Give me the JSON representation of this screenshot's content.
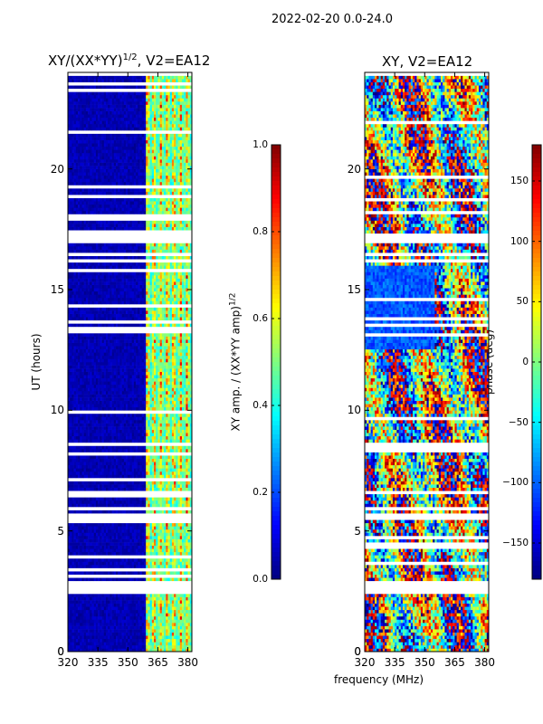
{
  "figure": {
    "suptitle": "2022-02-20 0.0-24.0",
    "common_xlabel": "frequency (MHz)"
  },
  "colors": {
    "jet_stops": [
      "#00007f",
      "#0000ff",
      "#007fff",
      "#00ffff",
      "#7fff7f",
      "#ffff00",
      "#ff7f00",
      "#ff0000",
      "#7f0000"
    ],
    "gap": "#ffffff",
    "frame": "#000000"
  },
  "chart_data": [
    {
      "type": "heatmap",
      "panel": "left",
      "title": "XY/(XX*YY)",
      "title_exponent": "1/2",
      "title_suffix": ", V2=EA12",
      "xlabel": "",
      "ylabel": "UT (hours)",
      "xlim": [
        320,
        382
      ],
      "ylim": [
        0,
        24
      ],
      "xticks": [
        320,
        335,
        350,
        365,
        380
      ],
      "yticks": [
        0,
        5,
        10,
        15,
        20
      ],
      "strong_band_mhz": [
        359,
        382
      ],
      "gaps_hours": [
        [
          2.4,
          2.9
        ],
        [
          5.5,
          5.7
        ],
        [
          8.5,
          8.7
        ],
        [
          16.1,
          16.3
        ],
        [
          17.0,
          17.3
        ],
        [
          23.9,
          24.0
        ]
      ],
      "colorbar": {
        "label": "XY amp. / (XX*YY amp)",
        "label_exponent": "1/2",
        "vmin": 0.0,
        "vmax": 1.0,
        "ticks": [
          "0.0",
          "0.2",
          "0.4",
          "0.6",
          "0.8",
          "1.0"
        ]
      }
    },
    {
      "type": "heatmap",
      "panel": "right",
      "title": "XY, V2=EA12",
      "xlabel": "",
      "ylabel": "",
      "xlim": [
        320,
        382
      ],
      "ylim": [
        0,
        24
      ],
      "xticks": [
        320,
        335,
        350,
        365,
        380
      ],
      "yticks": [
        0,
        5,
        10,
        15,
        20
      ],
      "gaps_hours": [
        [
          2.4,
          2.9
        ],
        [
          5.5,
          5.7
        ],
        [
          8.5,
          8.7
        ],
        [
          16.1,
          16.3
        ],
        [
          17.0,
          17.3
        ],
        [
          23.9,
          24.0
        ]
      ],
      "colorbar": {
        "label": "phase (deg)",
        "vmin": -180,
        "vmax": 180,
        "ticks": [
          "150",
          "100",
          "50",
          "0",
          "−50",
          "−100",
          "−150"
        ],
        "tick_values": [
          150,
          100,
          50,
          0,
          -50,
          -100,
          -150
        ]
      }
    }
  ]
}
